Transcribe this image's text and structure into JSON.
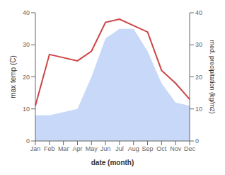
{
  "chart_data": {
    "type": "line",
    "xlabel": "date (month)",
    "ylabel": "max temp (C)",
    "y2label": "med. precipitation (kg/m2)",
    "categories": [
      "Jan",
      "Feb",
      "Mar",
      "Apr",
      "May",
      "Jun",
      "Jul",
      "Aug",
      "Sep",
      "Oct",
      "Nov",
      "Dec"
    ],
    "series": [
      {
        "type": "area",
        "axis": "y2",
        "color": "#c8d8f8",
        "values": [
          8,
          8,
          9,
          10,
          20,
          32,
          35,
          35,
          28,
          18,
          12,
          11
        ]
      },
      {
        "type": "line",
        "color": "#cc4444",
        "values": [
          11,
          27,
          26,
          25,
          28,
          37,
          38,
          36,
          34,
          22,
          18,
          13
        ]
      }
    ],
    "ylim": [
      0,
      40
    ],
    "yticks": [
      0,
      10,
      20,
      30,
      40
    ],
    "y2lim": [
      0,
      40
    ],
    "y2ticks": [
      0,
      10,
      20,
      30,
      40
    ],
    "grid": false
  }
}
